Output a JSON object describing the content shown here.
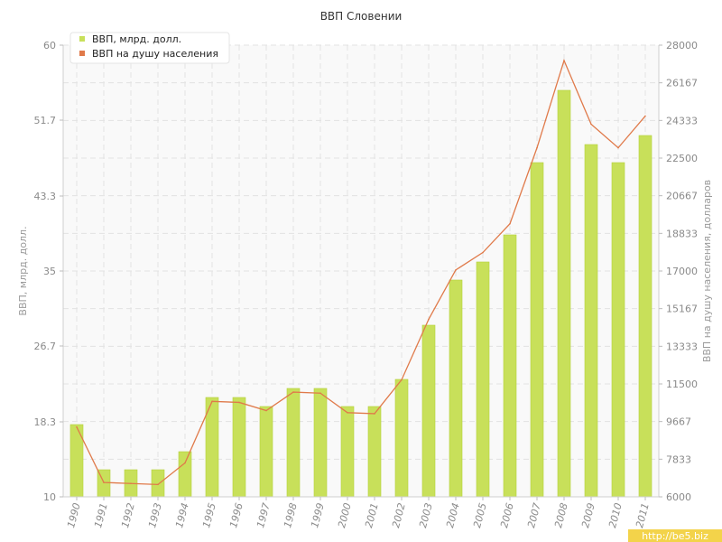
{
  "chart_data": {
    "type": "bar",
    "title": "ВВП Словении",
    "watermark": "http://be5.biz",
    "categories": [
      "1990",
      "1991",
      "1992",
      "1993",
      "1994",
      "1995",
      "1996",
      "1997",
      "1998",
      "1999",
      "2000",
      "2001",
      "2002",
      "2003",
      "2004",
      "2005",
      "2006",
      "2007",
      "2008",
      "2009",
      "2010",
      "2011"
    ],
    "ylabel": "ВВП, млрд. долл.",
    "y2label": "ВВП на душу населения, долларов",
    "ylim": [
      10,
      60
    ],
    "y2lim": [
      6000,
      28000
    ],
    "yticks": [
      "10",
      "18.3",
      "26.7",
      "35",
      "43.3",
      "51.7",
      "60"
    ],
    "y2ticks": [
      "6000",
      "7833",
      "9667",
      "11500",
      "13333",
      "15167",
      "17000",
      "18833",
      "20667",
      "22500",
      "24333",
      "26167",
      "28000"
    ],
    "grid": true,
    "legend_position": "top-left",
    "series": [
      {
        "name": "ВВП, млрд. долл.",
        "type": "bar",
        "axis": "left",
        "color": "#c8e05a",
        "values": [
          18,
          13,
          13,
          13,
          15,
          21,
          21,
          20,
          22,
          22,
          20,
          20,
          23,
          29,
          34,
          36,
          39,
          47,
          55,
          49,
          47,
          50
        ]
      },
      {
        "name": "ВВП на душу населения",
        "type": "line",
        "axis": "right",
        "color": "#e07a4a",
        "values": [
          9400,
          6700,
          6650,
          6600,
          7650,
          10650,
          10600,
          10200,
          11100,
          11050,
          10100,
          10050,
          11700,
          14650,
          17050,
          17900,
          19300,
          23000,
          27250,
          24150,
          23000,
          24550
        ]
      }
    ]
  }
}
